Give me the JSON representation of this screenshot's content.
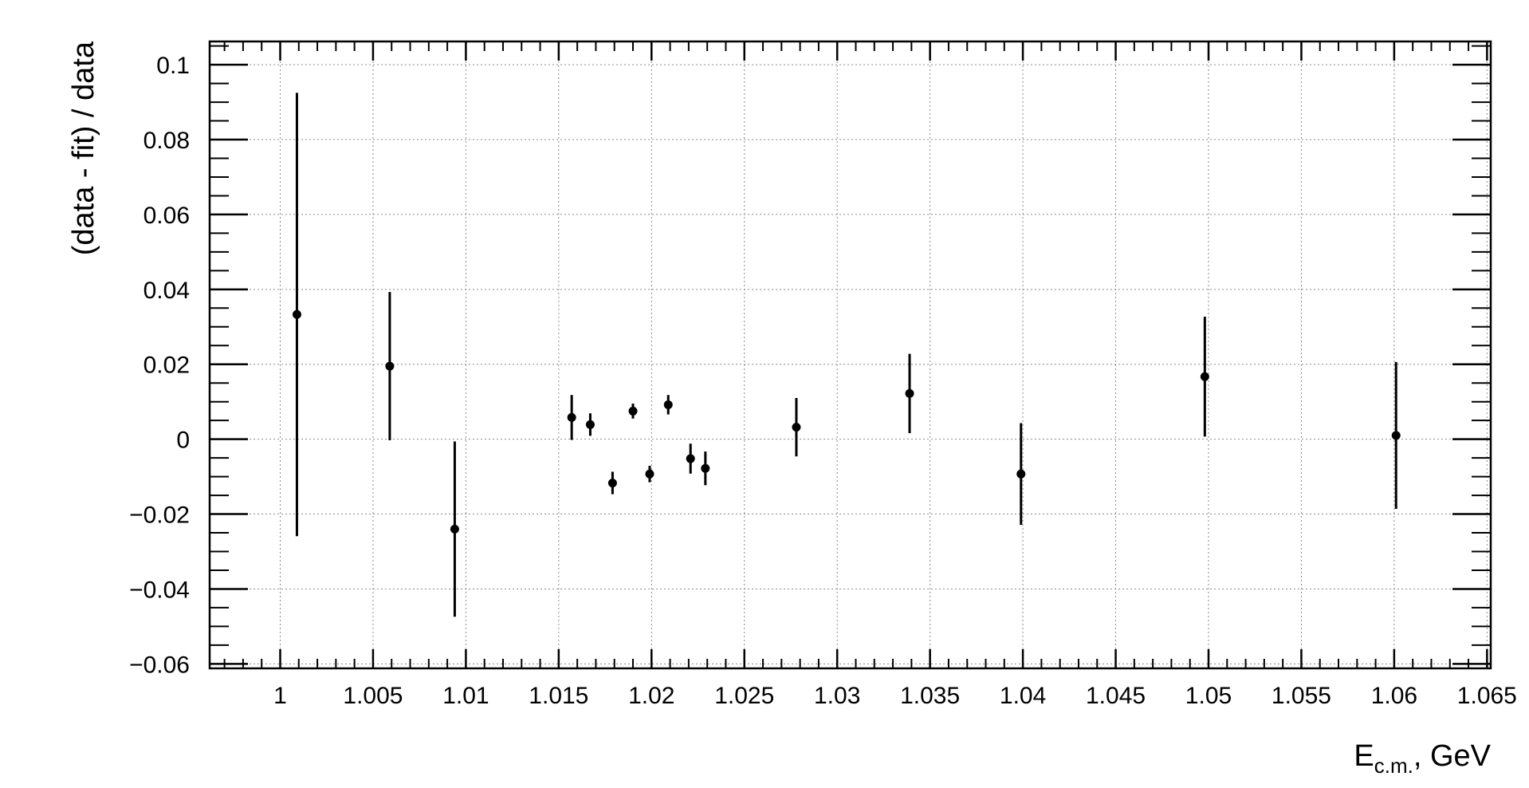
{
  "chart_data": {
    "type": "scatter",
    "title": "",
    "xlabel_main": "E",
    "xlabel_sub": "c.m.",
    "xlabel_tail": ", GeV",
    "ylabel": "(data - fit) / data",
    "xlim": [
      0.9962,
      1.0652
    ],
    "ylim": [
      -0.0612,
      0.1062
    ],
    "grid": true,
    "x_ticks": [
      1.0,
      1.005,
      1.01,
      1.015,
      1.02,
      1.025,
      1.03,
      1.035,
      1.04,
      1.045,
      1.05,
      1.055,
      1.06,
      1.065
    ],
    "x_tick_labels": [
      "1",
      "1.005",
      "1.01",
      "1.015",
      "1.02",
      "1.025",
      "1.03",
      "1.035",
      "1.04",
      "1.045",
      "1.05",
      "1.055",
      "1.06",
      "1.065"
    ],
    "y_ticks": [
      -0.06,
      -0.04,
      -0.02,
      0.0,
      0.02,
      0.04,
      0.06,
      0.08,
      0.1
    ],
    "y_tick_labels": [
      "−0.06",
      "−0.04",
      "−0.02",
      "0",
      "0.02",
      "0.04",
      "0.06",
      "0.08",
      "0.1"
    ],
    "series": [
      {
        "color": "#000000",
        "points": [
          {
            "x": 1.0009,
            "y": 0.0333,
            "err": 0.0592
          },
          {
            "x": 1.0059,
            "y": 0.0195,
            "err": 0.0198
          },
          {
            "x": 1.0094,
            "y": -0.024,
            "err": 0.0234
          },
          {
            "x": 1.0157,
            "y": 0.0058,
            "err": 0.006
          },
          {
            "x": 1.0167,
            "y": 0.0039,
            "err": 0.003
          },
          {
            "x": 1.0179,
            "y": -0.0117,
            "err": 0.003
          },
          {
            "x": 1.019,
            "y": 0.0075,
            "err": 0.002
          },
          {
            "x": 1.0199,
            "y": -0.0093,
            "err": 0.0022
          },
          {
            "x": 1.0209,
            "y": 0.0092,
            "err": 0.0026
          },
          {
            "x": 1.0221,
            "y": -0.0052,
            "err": 0.004
          },
          {
            "x": 1.0229,
            "y": -0.0078,
            "err": 0.0045
          },
          {
            "x": 1.0278,
            "y": 0.0032,
            "err": 0.0078
          },
          {
            "x": 1.0339,
            "y": 0.0122,
            "err": 0.0106
          },
          {
            "x": 1.0399,
            "y": -0.0093,
            "err": 0.0136
          },
          {
            "x": 1.0498,
            "y": 0.0167,
            "err": 0.016
          },
          {
            "x": 1.0601,
            "y": 0.001,
            "err": 0.0196
          }
        ]
      }
    ]
  }
}
